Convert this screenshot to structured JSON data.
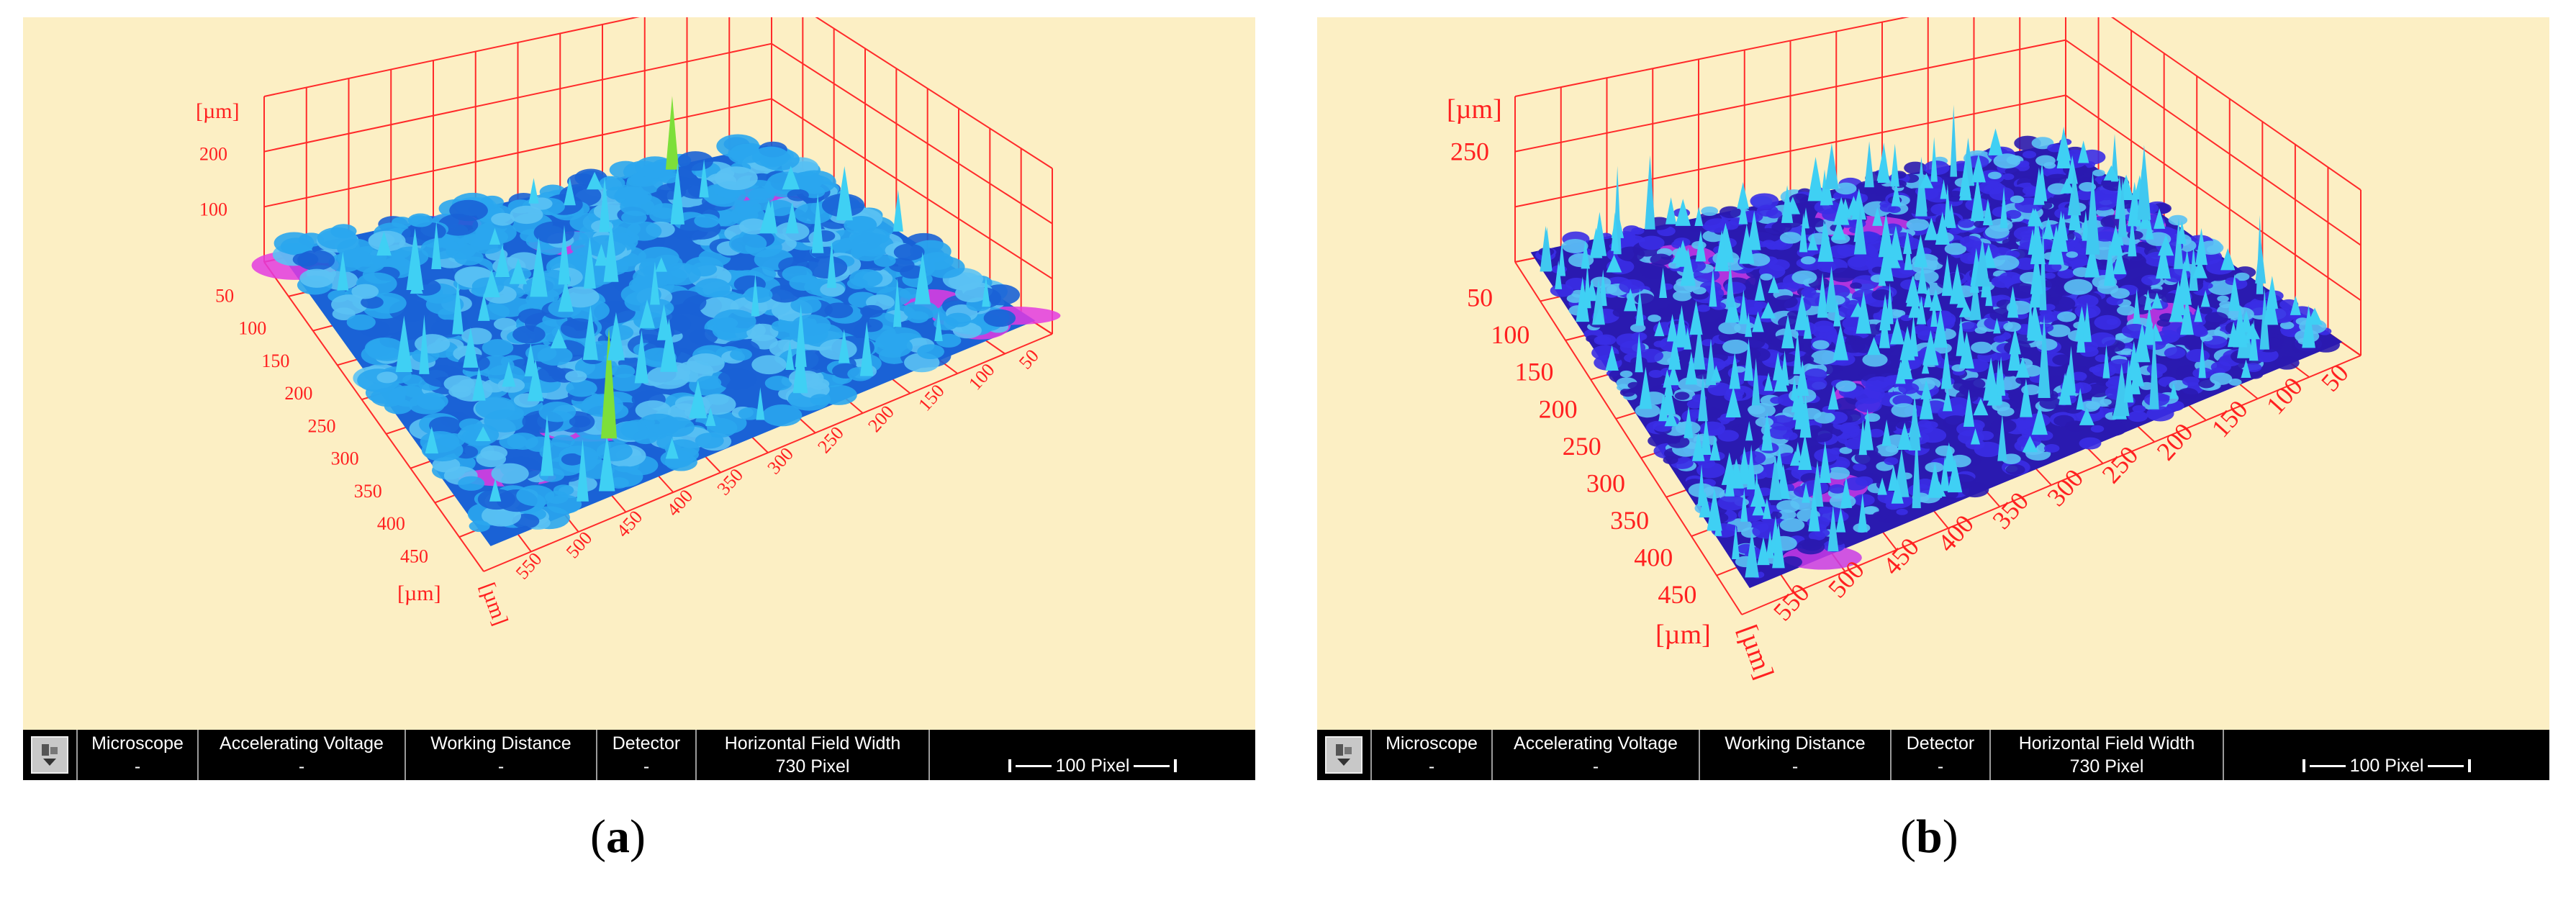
{
  "panels": [
    {
      "id": "a",
      "caption_letter": "a",
      "axis_unit": "[µm]",
      "z_ticks": [
        "200",
        "100"
      ],
      "y_ticks": [
        "50",
        "100",
        "150",
        "200",
        "250",
        "300",
        "350",
        "400",
        "450"
      ],
      "x_ticks": [
        "550",
        "500",
        "450",
        "400",
        "350",
        "300",
        "250",
        "200",
        "150",
        "100",
        "50"
      ],
      "surface_base_color": "#2aa6ee",
      "surface_dark_color": "#1a62d6",
      "surface_pit_color": "#e33be0",
      "surface_peak_color": "#7ddf3a",
      "status": {
        "microscope_label": "Microscope",
        "microscope_value": "-",
        "voltage_label": "Accelerating Voltage",
        "voltage_value": "-",
        "distance_label": "Working Distance",
        "distance_value": "-",
        "detector_label": "Detector",
        "detector_value": "-",
        "hfw_label": "Horizontal Field Width",
        "hfw_value": "730 Pixel",
        "scale_label": "100 Pixel"
      }
    },
    {
      "id": "b",
      "caption_letter": "b",
      "axis_unit": "[µm]",
      "z_ticks": [
        "250"
      ],
      "y_ticks": [
        "50",
        "100",
        "150",
        "200",
        "250",
        "300",
        "350",
        "400",
        "450"
      ],
      "x_ticks": [
        "550",
        "500",
        "450",
        "400",
        "350",
        "300",
        "250",
        "200",
        "150",
        "100",
        "50"
      ],
      "surface_base_color": "#3a2ee6",
      "surface_dark_color": "#2a1ab0",
      "surface_pit_color": "#c83ae6",
      "surface_peak_color": "#40c8f0",
      "status": {
        "microscope_label": "Microscope",
        "microscope_value": "-",
        "voltage_label": "Accelerating Voltage",
        "voltage_value": "-",
        "distance_label": "Working Distance",
        "distance_value": "-",
        "detector_label": "Detector",
        "detector_value": "-",
        "hfw_label": "Horizontal Field Width",
        "hfw_value": "730 Pixel",
        "scale_label": "100 Pixel"
      }
    }
  ],
  "colors": {
    "background": "#fcefc4",
    "grid": "#ff2a2a",
    "axis_text": "#ff2020"
  }
}
